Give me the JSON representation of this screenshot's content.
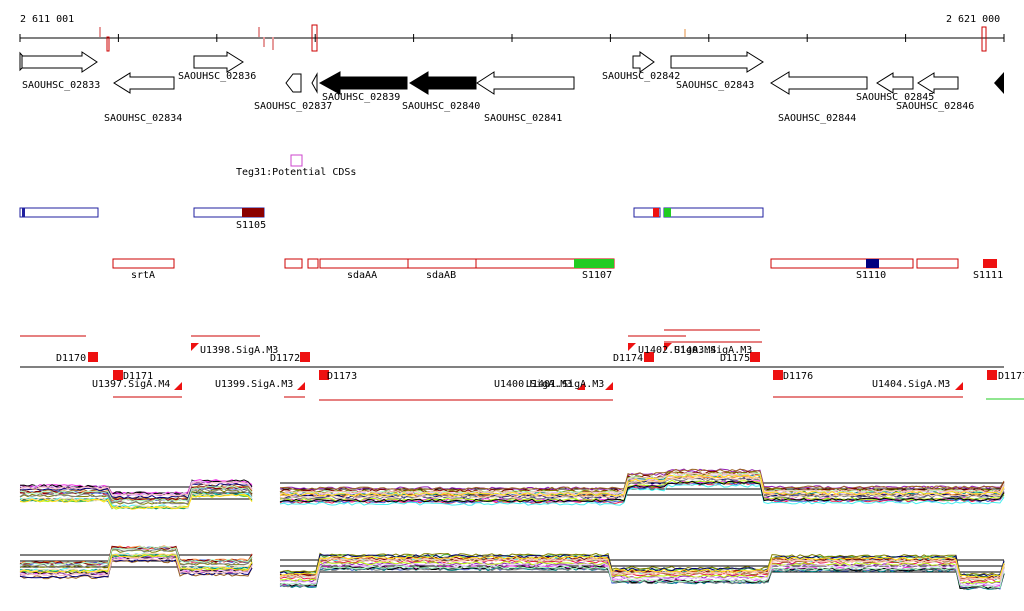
{
  "coords": {
    "start": "2 611 001",
    "end": "2 621 000"
  },
  "genes": [
    {
      "label": "SAOUHSC_02833",
      "strand": "+",
      "filled": false
    },
    {
      "label": "SAOUHSC_02834",
      "strand": "-",
      "filled": false
    },
    {
      "label": "SAOUHSC_02836",
      "strand": "+",
      "filled": false
    },
    {
      "label": "SAOUHSC_02837",
      "strand": "-",
      "filled": false
    },
    {
      "label": "SAOUHSC_02839",
      "strand": "-",
      "filled": true
    },
    {
      "label": "SAOUHSC_02840",
      "strand": "-",
      "filled": true
    },
    {
      "label": "SAOUHSC_02841",
      "strand": "-",
      "filled": false
    },
    {
      "label": "SAOUHSC_02842",
      "strand": "+",
      "filled": false
    },
    {
      "label": "SAOUHSC_02843",
      "strand": "+",
      "filled": false
    },
    {
      "label": "SAOUHSC_02844",
      "strand": "-",
      "filled": false
    },
    {
      "label": "SAOUHSC_02845",
      "strand": "-",
      "filled": false
    },
    {
      "label": "SAOUHSC_02846",
      "strand": "-",
      "filled": false
    }
  ],
  "potential_cds": {
    "label": "Teg31:Potential CDSs"
  },
  "s_labels": [
    "S1105",
    "S1107",
    "S1110",
    "S1111"
  ],
  "gene_names": [
    "srtA",
    "sdaAA",
    "sdaAB"
  ],
  "d_labels": [
    "D1170",
    "D1171",
    "D1172",
    "D1173",
    "D1174",
    "D1175",
    "D1176",
    "D1177"
  ],
  "u_labels": [
    "U1397.SigA.M4",
    "U1398.SigA.M3",
    "U1399.SigA.M3",
    "U1400.SigA.M3",
    "U1401.SigA.M3",
    "U1402.SigA.M4",
    "U1403.SigA.M3",
    "U1404.SigA.M3"
  ],
  "colors": {
    "annotation": "#cc0000",
    "blue": "#1f1f9f",
    "green": "#22cc22",
    "darkred": "#8b0000",
    "navy": "#000080",
    "magenta": "#cc44cc"
  }
}
